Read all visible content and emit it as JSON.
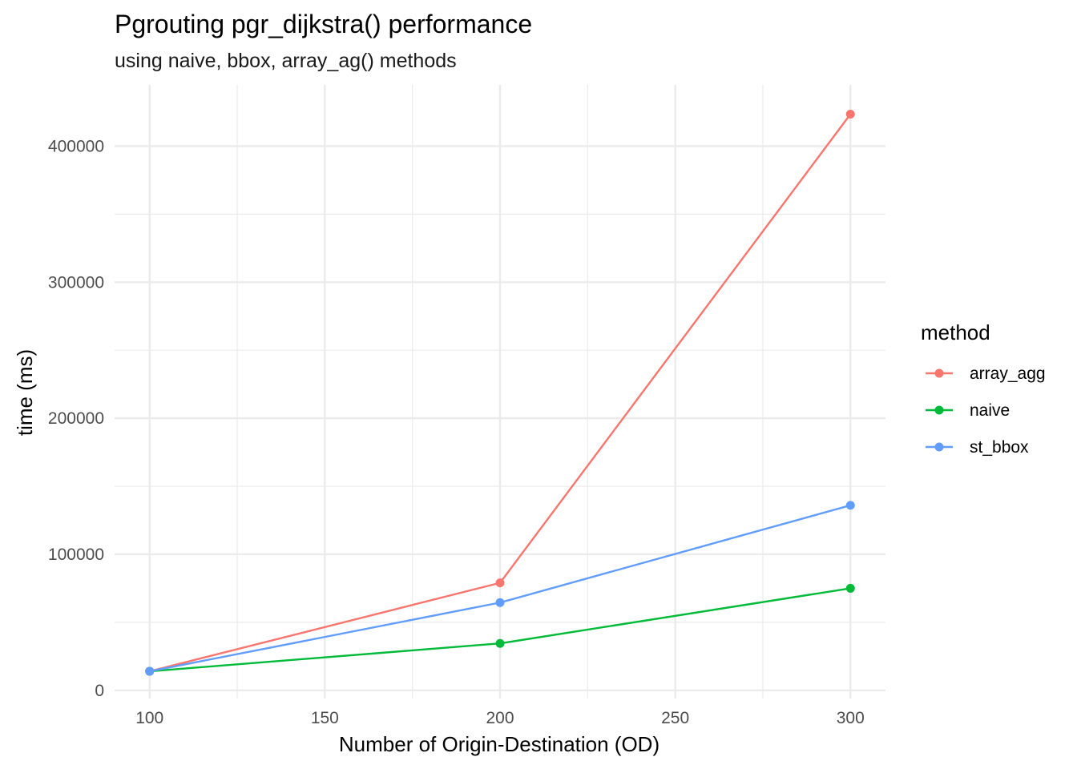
{
  "chart_data": {
    "type": "line",
    "title": "Pgrouting pgr_dijkstra() performance",
    "subtitle": "using naive, bbox, array_ag() methods",
    "xlabel": "Number of Origin-Destination (OD)",
    "ylabel": "time (ms)",
    "x": [
      100,
      200,
      300
    ],
    "xlim": [
      90,
      310
    ],
    "ylim": [
      -6000,
      445000
    ],
    "x_ticks": [
      100,
      150,
      200,
      250,
      300
    ],
    "x_tick_labels": [
      "100",
      "150",
      "200",
      "250",
      "300"
    ],
    "x_minor_ticks": [
      125,
      175,
      225,
      275
    ],
    "y_ticks": [
      0,
      100000,
      200000,
      300000,
      400000
    ],
    "y_tick_labels": [
      "0",
      "100000",
      "200000",
      "300000",
      "400000"
    ],
    "y_minor_ticks": [
      50000,
      150000,
      250000,
      350000
    ],
    "grid": true,
    "legend": {
      "title": "method",
      "position": "right"
    },
    "series": [
      {
        "name": "array_agg",
        "color": "#F8766D",
        "values": [
          14000,
          79000,
          423500
        ]
      },
      {
        "name": "naive",
        "color": "#00BA38",
        "values": [
          14000,
          34500,
          75000
        ]
      },
      {
        "name": "st_bbox",
        "color": "#619CFF",
        "values": [
          14000,
          64500,
          136000
        ]
      }
    ]
  }
}
